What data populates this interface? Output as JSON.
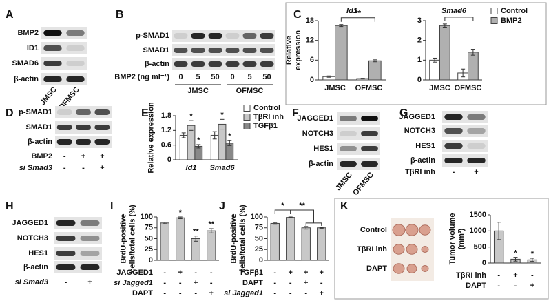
{
  "panel_letters": [
    "A",
    "B",
    "C",
    "D",
    "E",
    "F",
    "G",
    "H",
    "I",
    "J",
    "K"
  ],
  "blots": [
    {
      "rows": [
        "BMP2",
        "ID1",
        "SMAD6",
        "β-actin"
      ],
      "lanes": [
        "JMSC",
        "OFMSC"
      ]
    },
    {
      "rows": [
        "p-SMAD1",
        "SMAD1",
        "β-actin"
      ],
      "conditions": [
        {
          "label": "BMP2 (ng ml⁻¹)",
          "signs": [
            "0",
            "5",
            "50",
            "0",
            "5",
            "50"
          ]
        }
      ],
      "groups": [
        "JMSC",
        "OFMSC"
      ]
    },
    {
      "rows": [
        "p-SMAD1",
        "SMAD1",
        "β-actin"
      ],
      "conditions": [
        {
          "label": "BMP2",
          "signs": [
            "-",
            "+",
            "+"
          ]
        },
        {
          "label": "si Smad3",
          "signs": [
            "-",
            "-",
            "+"
          ]
        }
      ]
    },
    {
      "rows": [
        "JAGGED1",
        "NOTCH3",
        "HES1",
        "β-actin"
      ],
      "lanes": [
        "JMSC",
        "OFMSC"
      ]
    },
    {
      "rows": [
        "JAGGED1",
        "NOTCH3",
        "HES1",
        "β-actin"
      ],
      "conditions": [
        {
          "label": "TβRI inh",
          "signs": [
            "-",
            "+"
          ]
        }
      ]
    },
    {
      "rows": [
        "JAGGED1",
        "NOTCH3",
        "HES1",
        "β-actin"
      ],
      "conditions": [
        {
          "label": "si Smad3",
          "signs": [
            "-",
            "+"
          ]
        }
      ]
    }
  ],
  "chart_data": [
    {
      "type": "bar",
      "title": "Id1",
      "categories": [
        "JMSC",
        "OFMSC"
      ],
      "ylabel": [
        "Relative",
        "expression"
      ],
      "series": [
        {
          "color": "#ffffff",
          "values": [
            1,
            0.4
          ],
          "errors": [
            0.2,
            0.1
          ]
        },
        {
          "color": "#b0b0b0",
          "values": [
            16.5,
            5.8
          ],
          "errors": [
            0.3,
            0.3
          ]
        }
      ],
      "ylim": [
        0,
        18
      ],
      "yticks": [
        0,
        6,
        12,
        18
      ],
      "comparisons": [
        "**"
      ]
    },
    {
      "type": "bar",
      "title": "Smad6",
      "categories": [
        "JMSC",
        "OFMSC"
      ],
      "series": [
        {
          "name": "Control",
          "color": "#ffffff",
          "values": [
            1.0,
            0.35
          ],
          "errors": [
            0.1,
            0.2
          ]
        },
        {
          "name": "BMP2",
          "color": "#b0b0b0",
          "values": [
            2.75,
            1.4
          ],
          "errors": [
            0.08,
            0.15
          ]
        }
      ],
      "ylim": [
        0,
        3
      ],
      "yticks": [
        0,
        1,
        2,
        3
      ],
      "comparisons": [
        "*"
      ],
      "legend": true
    },
    {
      "type": "bar",
      "categories": [
        "Id1",
        "Smad6"
      ],
      "ylabel": [
        "Relative expression"
      ],
      "series": [
        {
          "name": "Control",
          "color": "#ffffff",
          "values": [
            1.0,
            1.0
          ],
          "errors": [
            0.1,
            0.15
          ]
        },
        {
          "name": "TβRI inh",
          "color": "#c8c8c8",
          "values": [
            1.4,
            1.45
          ],
          "errors": [
            0.2,
            0.2
          ],
          "significance": [
            "*",
            "*"
          ]
        },
        {
          "name": "TGFβ1",
          "color": "#888888",
          "values": [
            0.55,
            0.68
          ],
          "errors": [
            0.07,
            0.1
          ],
          "significance": [
            "*",
            "*"
          ]
        }
      ],
      "ylim": [
        0,
        1.8
      ],
      "yticks": [
        0,
        0.6,
        1.2,
        1.8
      ],
      "legend": true
    },
    {
      "type": "bar",
      "ylabel": [
        "BrdU-positive",
        "cells/total cells (%)"
      ],
      "series": [
        {
          "color": "#c8c8c8",
          "values": [
            86,
            98,
            50,
            68
          ],
          "errors": [
            2,
            2,
            6,
            5
          ],
          "significance": [
            null,
            "*",
            "**",
            "**"
          ]
        }
      ],
      "ylim": [
        0,
        100
      ],
      "yticks": [
        0,
        25,
        50,
        75,
        100
      ],
      "conditions": [
        {
          "label": "JAGGED1",
          "signs": [
            "-",
            "+",
            "-",
            "-"
          ]
        },
        {
          "label": "si Jagged1",
          "signs": [
            "-",
            "-",
            "+",
            "-"
          ]
        },
        {
          "label": "DAPT",
          "signs": [
            "-",
            "-",
            "-",
            "+"
          ]
        }
      ]
    },
    {
      "type": "bar",
      "ylabel": [
        "BrdU-positive",
        "cells/total cells (%)"
      ],
      "series": [
        {
          "color": "#c8c8c8",
          "values": [
            85,
            99,
            75,
            75
          ],
          "errors": [
            2,
            1,
            3,
            1
          ]
        }
      ],
      "ylim": [
        0,
        100
      ],
      "yticks": [
        0,
        25,
        50,
        75,
        100
      ],
      "comparisons": [
        "*",
        "**"
      ],
      "conditions": [
        {
          "label": "TGFβ1",
          "signs": [
            "-",
            "+",
            "+",
            "+"
          ]
        },
        {
          "label": "DAPT",
          "signs": [
            "-",
            "-",
            "+",
            "-"
          ]
        },
        {
          "label": "si Jagged1",
          "signs": [
            "-",
            "-",
            "-",
            "+"
          ]
        }
      ]
    },
    {
      "type": "bar",
      "ylabel": [
        "Tumor volume",
        "(mm³)"
      ],
      "series": [
        {
          "color": "#c8c8c8",
          "values": [
            1000,
            120,
            100
          ],
          "errors": [
            270,
            60,
            50
          ],
          "significance": [
            null,
            "*",
            "*"
          ]
        }
      ],
      "ylim": [
        0,
        1500
      ],
      "yticks": [
        0,
        500,
        1000,
        1500
      ],
      "conditions": [
        {
          "label": "TβRI inh",
          "signs": [
            "-",
            "+",
            "-"
          ]
        },
        {
          "label": "DAPT",
          "signs": [
            "-",
            "-",
            "+"
          ]
        }
      ],
      "photo_rows": [
        "Control",
        "TβRI inh",
        "DAPT"
      ]
    }
  ]
}
